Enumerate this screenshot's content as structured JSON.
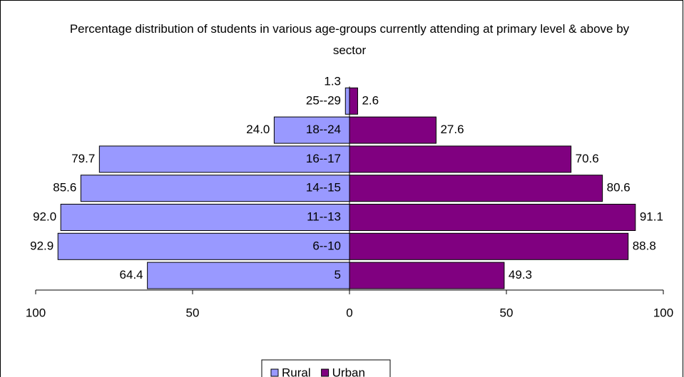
{
  "chart_data": {
    "type": "pyramid",
    "title": "Percentage distribution of students in various age-groups currently attending at primary level & above by sector",
    "categories": [
      "5",
      "6--10",
      "11--13",
      "14--15",
      "16--17",
      "18--24",
      "25--29"
    ],
    "series": [
      {
        "name": "Rural",
        "color": "#9999ff",
        "values": [
          64.4,
          92.9,
          92.0,
          85.6,
          79.7,
          24.0,
          1.3
        ],
        "value_labels": [
          "64.4",
          "92.9",
          "92.0",
          "85.6",
          "79.7",
          "24.0",
          "1.3"
        ]
      },
      {
        "name": "Urban",
        "color": "#800080",
        "values": [
          49.3,
          88.8,
          91.1,
          80.6,
          70.6,
          27.6,
          2.6
        ],
        "value_labels": [
          "49.3",
          "88.8",
          "91.1",
          "80.6",
          "70.6",
          "27.6",
          "2.6"
        ]
      }
    ],
    "xlim": [
      -100,
      100
    ],
    "xticks": [
      {
        "value": -100,
        "label": "100"
      },
      {
        "value": -50,
        "label": "50"
      },
      0,
      50,
      100
    ],
    "legend": "bottom"
  }
}
